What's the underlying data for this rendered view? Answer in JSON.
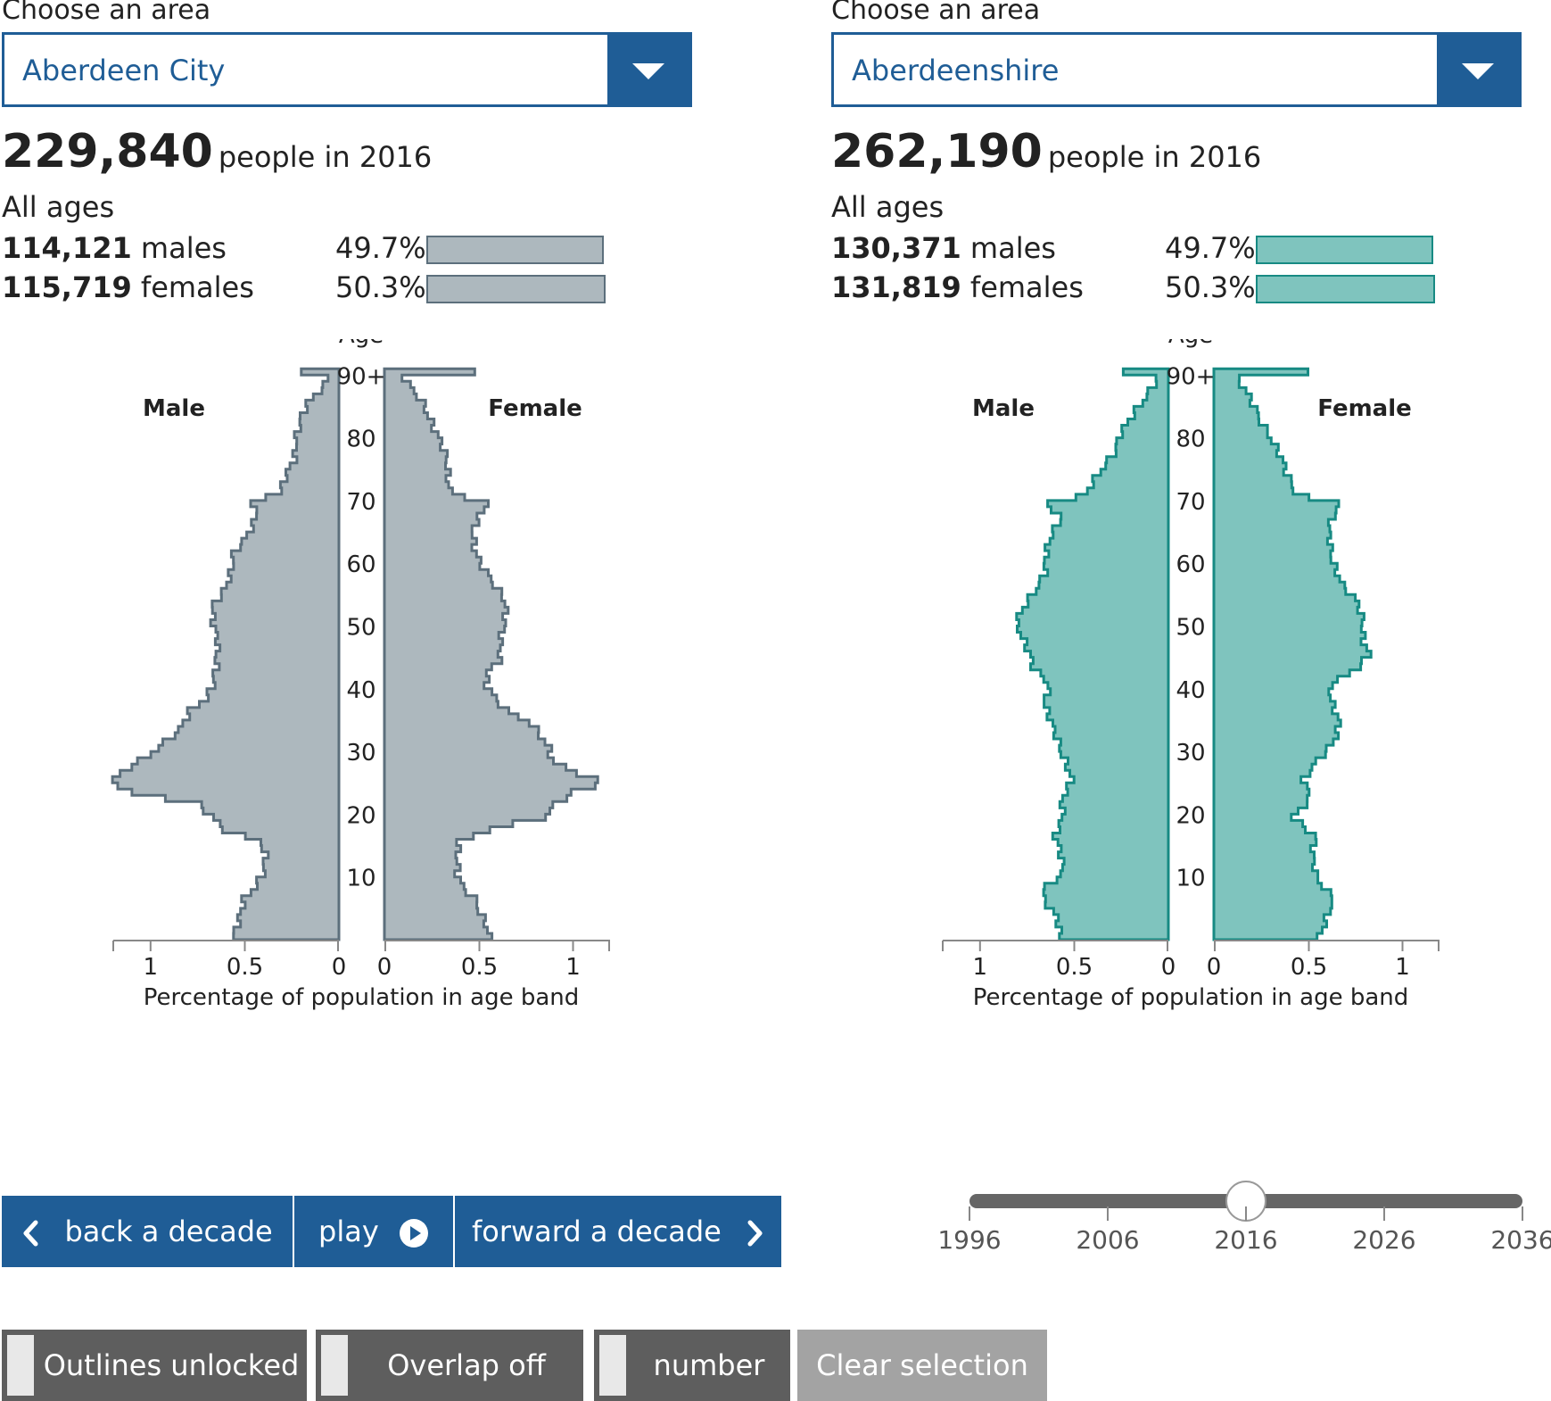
{
  "colors": {
    "brand_blue": "#1f5d96",
    "left_fill": "#adb8be",
    "left_stroke": "#5c6f7c",
    "right_fill": "#7fc4be",
    "right_stroke": "#178a83",
    "toggle_bg": "#5e5e5e",
    "clear_bg": "#a3a3a3"
  },
  "panels": [
    {
      "choose_label": "Choose an area",
      "area": "Aberdeen City",
      "total_number": "229,840",
      "total_text": "people in 2016",
      "all_ages": "All ages",
      "males_number": "114,121",
      "males_label": "males",
      "males_pct": "49.7%",
      "males_share": 49.7,
      "females_number": "115,719",
      "females_label": "females",
      "females_pct": "50.3%",
      "females_share": 50.3
    },
    {
      "choose_label": "Choose an area",
      "area": "Aberdeenshire",
      "total_number": "262,190",
      "total_text": "people in 2016",
      "all_ages": "All ages",
      "males_number": "130,371",
      "males_label": "males",
      "males_pct": "49.7%",
      "males_share": 49.7,
      "females_number": "131,819",
      "females_label": "females",
      "females_pct": "50.3%",
      "females_share": 50.3
    }
  ],
  "chart_data": [
    {
      "type": "area",
      "area": "Aberdeen City",
      "title": "",
      "y_axis_label": "Age",
      "x_axis_label": "Percentage of population in age band",
      "left_label": "Male",
      "right_label": "Female",
      "age_ticks": [
        "10",
        "20",
        "30",
        "40",
        "50",
        "60",
        "70",
        "80",
        "90+"
      ],
      "x_ticks": [
        "1",
        "0.5",
        "0",
        "0",
        "0.5",
        "1"
      ],
      "xlim": [
        0,
        1.2
      ],
      "age_range": [
        0,
        90
      ],
      "series": [
        {
          "name": "Male",
          "anchors": [
            [
              0,
              0.56
            ],
            [
              3,
              0.54
            ],
            [
              6,
              0.5
            ],
            [
              8,
              0.43
            ],
            [
              10,
              0.4
            ],
            [
              13,
              0.4
            ],
            [
              15,
              0.42
            ],
            [
              17,
              0.6
            ],
            [
              19,
              0.66
            ],
            [
              21,
              0.74
            ],
            [
              23,
              1.1
            ],
            [
              24,
              1.2
            ],
            [
              25,
              1.2
            ],
            [
              26,
              1.17
            ],
            [
              28,
              1.05
            ],
            [
              30,
              0.95
            ],
            [
              33,
              0.85
            ],
            [
              36,
              0.8
            ],
            [
              38,
              0.7
            ],
            [
              40,
              0.66
            ],
            [
              43,
              0.65
            ],
            [
              45,
              0.66
            ],
            [
              47,
              0.65
            ],
            [
              50,
              0.66
            ],
            [
              53,
              0.66
            ],
            [
              55,
              0.62
            ],
            [
              58,
              0.58
            ],
            [
              61,
              0.55
            ],
            [
              64,
              0.48
            ],
            [
              67,
              0.45
            ],
            [
              69,
              0.46
            ],
            [
              70,
              0.4
            ],
            [
              71,
              0.3
            ],
            [
              73,
              0.28
            ],
            [
              76,
              0.24
            ],
            [
              79,
              0.24
            ],
            [
              82,
              0.2
            ],
            [
              85,
              0.16
            ],
            [
              88,
              0.08
            ],
            [
              90,
              0.07
            ],
            [
              90.5,
              0.2
            ]
          ]
        },
        {
          "name": "Female",
          "anchors": [
            [
              0,
              0.55
            ],
            [
              3,
              0.52
            ],
            [
              6,
              0.49
            ],
            [
              8,
              0.42
            ],
            [
              10,
              0.38
            ],
            [
              13,
              0.38
            ],
            [
              15,
              0.4
            ],
            [
              17,
              0.56
            ],
            [
              19,
              0.85
            ],
            [
              21,
              0.9
            ],
            [
              23,
              0.99
            ],
            [
              24,
              1.12
            ],
            [
              25,
              1.12
            ],
            [
              26,
              1.04
            ],
            [
              28,
              0.9
            ],
            [
              30,
              0.88
            ],
            [
              32,
              0.82
            ],
            [
              34,
              0.77
            ],
            [
              36,
              0.65
            ],
            [
              38,
              0.6
            ],
            [
              40,
              0.55
            ],
            [
              42,
              0.54
            ],
            [
              44,
              0.6
            ],
            [
              47,
              0.62
            ],
            [
              50,
              0.65
            ],
            [
              53,
              0.64
            ],
            [
              56,
              0.58
            ],
            [
              59,
              0.53
            ],
            [
              62,
              0.48
            ],
            [
              65,
              0.46
            ],
            [
              67,
              0.5
            ],
            [
              69,
              0.55
            ],
            [
              70,
              0.45
            ],
            [
              71,
              0.36
            ],
            [
              73,
              0.34
            ],
            [
              76,
              0.32
            ],
            [
              79,
              0.3
            ],
            [
              82,
              0.26
            ],
            [
              85,
              0.2
            ],
            [
              88,
              0.12
            ],
            [
              90,
              0.09
            ],
            [
              90.5,
              0.48
            ]
          ]
        }
      ]
    },
    {
      "type": "area",
      "area": "Aberdeenshire",
      "title": "",
      "y_axis_label": "Age",
      "x_axis_label": "Percentage of population in age band",
      "left_label": "Male",
      "right_label": "Female",
      "age_ticks": [
        "10",
        "20",
        "30",
        "40",
        "50",
        "60",
        "70",
        "80",
        "90+"
      ],
      "x_ticks": [
        "1",
        "0.5",
        "0",
        "0",
        "0.5",
        "1"
      ],
      "xlim": [
        0,
        1.2
      ],
      "age_range": [
        0,
        90
      ],
      "series": [
        {
          "name": "Male",
          "anchors": [
            [
              0,
              0.58
            ],
            [
              3,
              0.6
            ],
            [
              6,
              0.66
            ],
            [
              8,
              0.64
            ],
            [
              10,
              0.56
            ],
            [
              13,
              0.58
            ],
            [
              16,
              0.6
            ],
            [
              19,
              0.55
            ],
            [
              22,
              0.57
            ],
            [
              25,
              0.52
            ],
            [
              28,
              0.54
            ],
            [
              31,
              0.58
            ],
            [
              34,
              0.63
            ],
            [
              37,
              0.66
            ],
            [
              40,
              0.62
            ],
            [
              43,
              0.72
            ],
            [
              46,
              0.76
            ],
            [
              50,
              0.8
            ],
            [
              52,
              0.77
            ],
            [
              55,
              0.72
            ],
            [
              58,
              0.66
            ],
            [
              61,
              0.64
            ],
            [
              64,
              0.62
            ],
            [
              67,
              0.58
            ],
            [
              69,
              0.66
            ],
            [
              70,
              0.48
            ],
            [
              71,
              0.42
            ],
            [
              74,
              0.36
            ],
            [
              77,
              0.3
            ],
            [
              80,
              0.26
            ],
            [
              83,
              0.18
            ],
            [
              86,
              0.12
            ],
            [
              89,
              0.07
            ],
            [
              90,
              0.06
            ],
            [
              90.5,
              0.24
            ]
          ]
        },
        {
          "name": "Female",
          "anchors": [
            [
              0,
              0.55
            ],
            [
              3,
              0.6
            ],
            [
              6,
              0.65
            ],
            [
              8,
              0.58
            ],
            [
              10,
              0.53
            ],
            [
              13,
              0.52
            ],
            [
              16,
              0.55
            ],
            [
              19,
              0.42
            ],
            [
              22,
              0.5
            ],
            [
              25,
              0.48
            ],
            [
              28,
              0.56
            ],
            [
              31,
              0.63
            ],
            [
              34,
              0.66
            ],
            [
              37,
              0.64
            ],
            [
              40,
              0.62
            ],
            [
              43,
              0.76
            ],
            [
              45,
              0.82
            ],
            [
              47,
              0.8
            ],
            [
              50,
              0.8
            ],
            [
              53,
              0.76
            ],
            [
              56,
              0.68
            ],
            [
              59,
              0.65
            ],
            [
              62,
              0.62
            ],
            [
              65,
              0.6
            ],
            [
              67,
              0.63
            ],
            [
              69,
              0.68
            ],
            [
              70,
              0.5
            ],
            [
              71,
              0.44
            ],
            [
              74,
              0.38
            ],
            [
              77,
              0.34
            ],
            [
              80,
              0.3
            ],
            [
              83,
              0.24
            ],
            [
              86,
              0.18
            ],
            [
              89,
              0.12
            ],
            [
              90,
              0.08
            ],
            [
              90.5,
              0.5
            ]
          ]
        }
      ]
    }
  ],
  "controls": {
    "back_label": "back a decade",
    "play_label": "play",
    "forward_label": "forward a decade",
    "outlines_label": "Outlines unlocked",
    "overlap_label": "Overlap off",
    "number_label": "number",
    "clear_label": "Clear selection"
  },
  "slider": {
    "ticks": [
      "1996",
      "2006",
      "2016",
      "2026",
      "2036"
    ],
    "value_year": 2016,
    "min_year": 1996,
    "max_year": 2036
  }
}
